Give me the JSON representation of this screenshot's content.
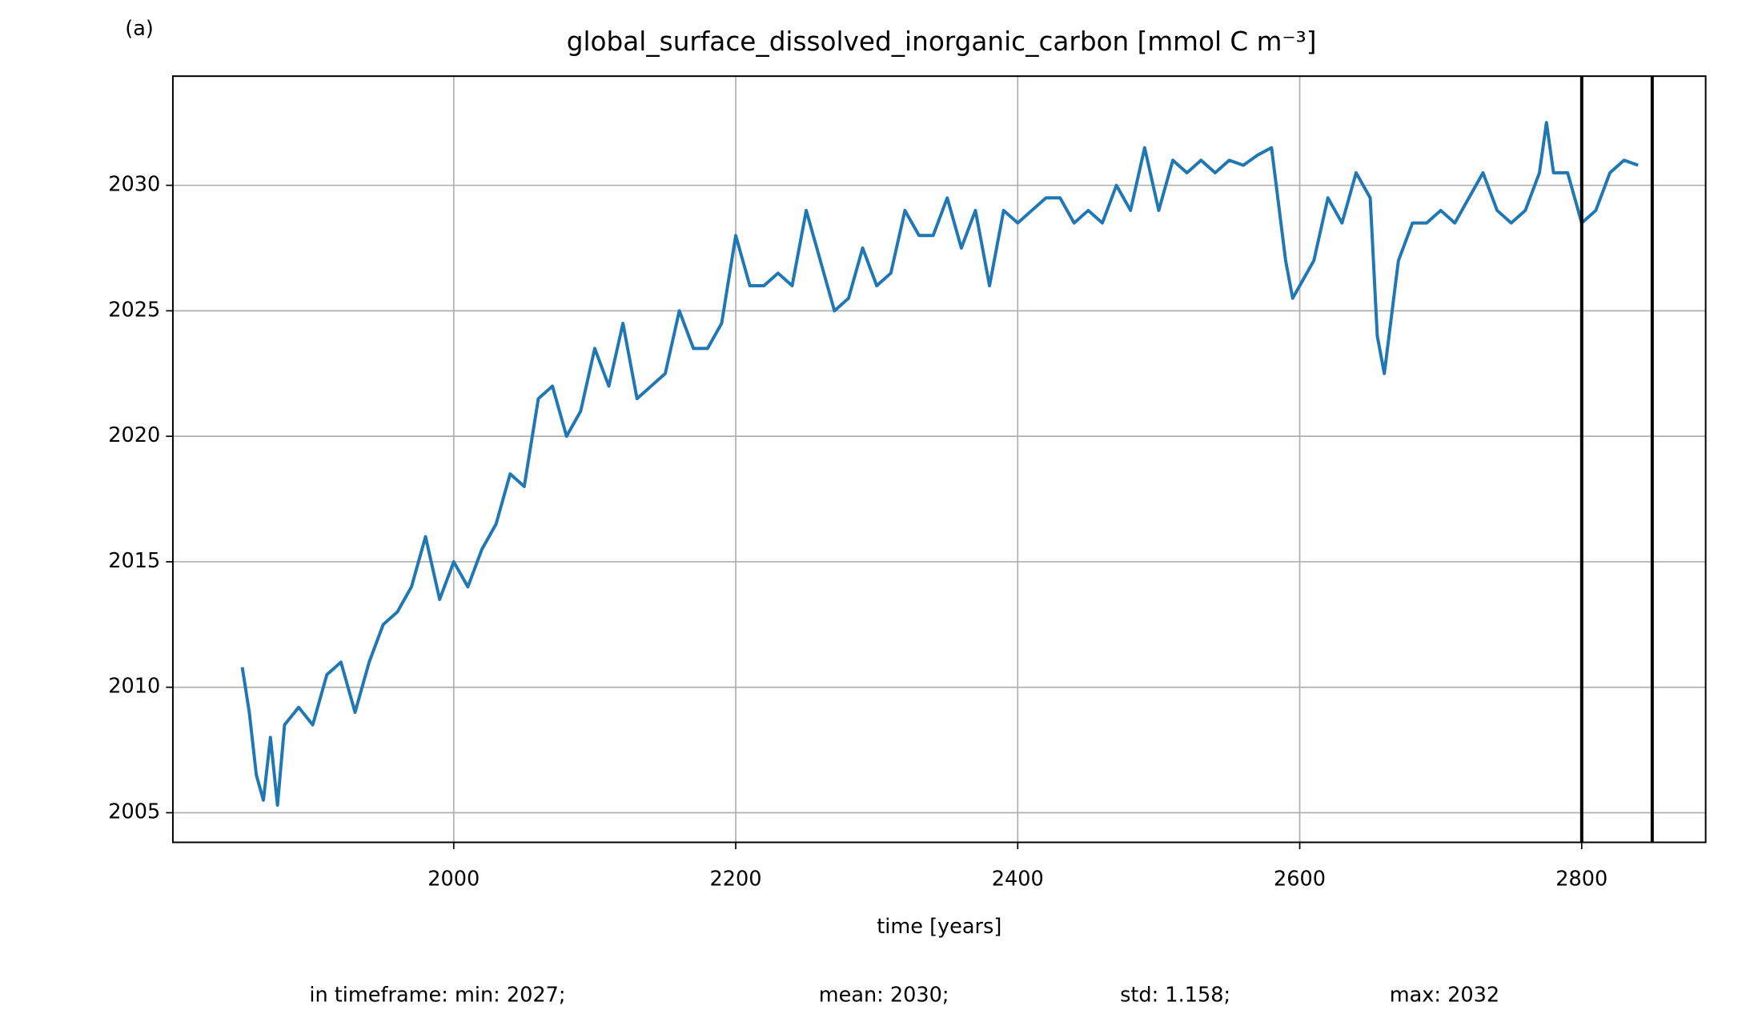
{
  "chart_data": {
    "type": "line",
    "panel_label": "(a)",
    "title": "global_surface_dissolved_inorganic_carbon [mmol C m⁻³]",
    "xlabel": "time [years]",
    "footer": [
      "in timeframe: min: 2027;",
      "mean: 2030;",
      "std: 1.158;",
      "max: 2032"
    ],
    "xlim": [
      1800.8,
      2887.9
    ],
    "ylim": [
      2003.82,
      2034.35
    ],
    "xticks": [
      2000,
      2200,
      2400,
      2600,
      2800
    ],
    "yticks": [
      2005,
      2010,
      2015,
      2020,
      2025,
      2030
    ],
    "grid": true,
    "vlines": [
      2800,
      2850
    ],
    "vline_color": "#000000",
    "x": [
      1850,
      1855,
      1860,
      1865,
      1870,
      1875,
      1880,
      1890,
      1900,
      1910,
      1920,
      1930,
      1940,
      1950,
      1960,
      1970,
      1980,
      1990,
      2000,
      2010,
      2020,
      2030,
      2040,
      2050,
      2060,
      2070,
      2080,
      2090,
      2100,
      2110,
      2120,
      2130,
      2140,
      2150,
      2160,
      2170,
      2180,
      2190,
      2200,
      2210,
      2220,
      2230,
      2240,
      2250,
      2260,
      2270,
      2280,
      2290,
      2300,
      2310,
      2320,
      2330,
      2340,
      2350,
      2360,
      2370,
      2380,
      2390,
      2400,
      2410,
      2420,
      2430,
      2440,
      2450,
      2460,
      2470,
      2480,
      2490,
      2500,
      2510,
      2520,
      2530,
      2540,
      2550,
      2560,
      2570,
      2580,
      2590,
      2595,
      2600,
      2610,
      2620,
      2630,
      2640,
      2650,
      2655,
      2660,
      2670,
      2680,
      2690,
      2700,
      2710,
      2720,
      2730,
      2740,
      2750,
      2760,
      2770,
      2775,
      2780,
      2790,
      2800,
      2810,
      2820,
      2830,
      2840
    ],
    "series": [
      {
        "color": "#1f77b4",
        "values": [
          2010.8,
          2009,
          2006.5,
          2005.5,
          2008,
          2005.3,
          2008.5,
          2009.2,
          2008.5,
          2010.5,
          2011,
          2009,
          2011,
          2012.5,
          2013,
          2014,
          2016,
          2013.5,
          2015,
          2014,
          2015.5,
          2016.5,
          2018.5,
          2018,
          2021.5,
          2022,
          2020,
          2021,
          2023.5,
          2022,
          2024.5,
          2021.5,
          2022,
          2022.5,
          2025,
          2023.5,
          2023.5,
          2024.5,
          2028,
          2026,
          2026,
          2026.5,
          2026,
          2029,
          2027,
          2025,
          2025.5,
          2027.5,
          2026,
          2026.5,
          2029,
          2028,
          2028,
          2029.5,
          2027.5,
          2029,
          2026,
          2029,
          2028.5,
          2029,
          2029.5,
          2029.5,
          2028.5,
          2029,
          2028.5,
          2030,
          2029,
          2031.5,
          2029,
          2031,
          2030.5,
          2031,
          2030.5,
          2031,
          2030.8,
          2031.2,
          2031.5,
          2027,
          2025.5,
          2026,
          2027,
          2029.5,
          2028.5,
          2030.5,
          2029.5,
          2024,
          2022.5,
          2027,
          2028.5,
          2028.5,
          2029,
          2028.5,
          2029.5,
          2030.5,
          2029,
          2028.5,
          2029,
          2030.5,
          2032.5,
          2030.5,
          2030.5,
          2028.5,
          2029,
          2030.5,
          2031,
          2030.8
        ]
      }
    ]
  }
}
